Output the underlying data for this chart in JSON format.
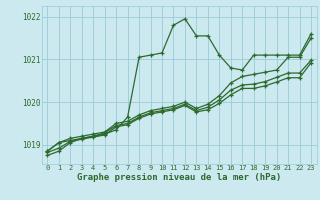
{
  "title": "",
  "xlabel": "Graphe pression niveau de la mer (hPa)",
  "bg_color": "#cce9f0",
  "grid_color": "#99ccd9",
  "line_color": "#2d6a2d",
  "xlim": [
    -0.5,
    23.5
  ],
  "ylim": [
    1018.55,
    1022.25
  ],
  "yticks": [
    1019,
    1020,
    1021,
    1022
  ],
  "xticks": [
    0,
    1,
    2,
    3,
    4,
    5,
    6,
    7,
    8,
    9,
    10,
    11,
    12,
    13,
    14,
    15,
    16,
    17,
    18,
    19,
    20,
    21,
    22,
    23
  ],
  "series": [
    [
      1018.75,
      1018.85,
      1019.05,
      1019.15,
      1019.2,
      1019.25,
      1019.35,
      1019.65,
      1021.05,
      1021.1,
      1021.15,
      1021.8,
      1021.95,
      1021.55,
      1021.55,
      1021.1,
      1020.8,
      1020.75,
      1021.1,
      1021.1,
      1021.1,
      1021.1,
      1021.1,
      1021.6
    ],
    [
      1018.85,
      1019.05,
      1019.15,
      1019.2,
      1019.25,
      1019.3,
      1019.5,
      1019.55,
      1019.7,
      1019.8,
      1019.85,
      1019.9,
      1020.0,
      1019.85,
      1019.95,
      1020.15,
      1020.45,
      1020.6,
      1020.65,
      1020.7,
      1020.75,
      1021.05,
      1021.05,
      1021.5
    ],
    [
      1018.85,
      1019.05,
      1019.1,
      1019.15,
      1019.2,
      1019.28,
      1019.45,
      1019.5,
      1019.65,
      1019.75,
      1019.8,
      1019.85,
      1019.95,
      1019.8,
      1019.88,
      1020.05,
      1020.28,
      1020.4,
      1020.42,
      1020.48,
      1020.58,
      1020.68,
      1020.68,
      1020.98
    ],
    [
      1018.82,
      1018.92,
      1019.08,
      1019.13,
      1019.18,
      1019.23,
      1019.42,
      1019.47,
      1019.62,
      1019.72,
      1019.77,
      1019.82,
      1019.92,
      1019.77,
      1019.82,
      1019.97,
      1020.17,
      1020.32,
      1020.32,
      1020.38,
      1020.47,
      1020.57,
      1020.57,
      1020.92
    ]
  ],
  "marker": "+",
  "markersize": 3,
  "linewidth": 0.9
}
